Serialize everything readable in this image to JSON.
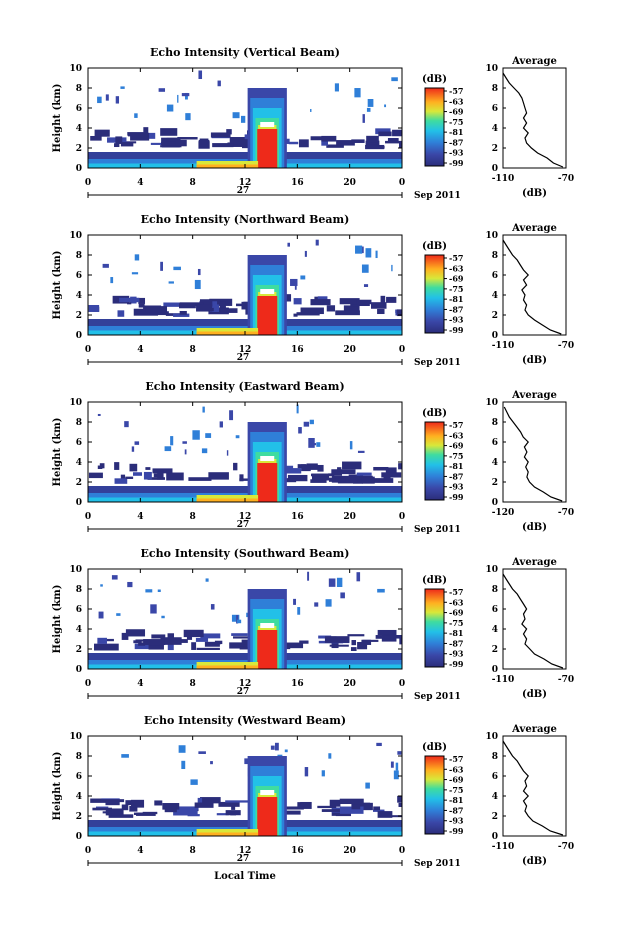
{
  "page": {
    "x_axis_label": "Local Time",
    "date_label": "Sep 2011",
    "day_label": "27"
  },
  "chart_data": [
    {
      "type": "heatmap",
      "title": "Echo Intensity (Vertical Beam)",
      "ylabel": "Height (km)",
      "x": [
        0,
        4,
        8,
        12,
        16,
        20,
        0
      ],
      "ylim": [
        0,
        10
      ],
      "yticks": [
        0,
        2,
        4,
        6,
        8,
        10
      ],
      "colorbar": {
        "label": "(dB)",
        "ticks": [
          -57,
          -63,
          -69,
          -75,
          -81,
          -87,
          -93,
          -99
        ]
      },
      "profile": {
        "title": "Average",
        "xlabel": "(dB)",
        "xlim": [
          -110,
          -70
        ],
        "xticks": [
          -110,
          -70
        ],
        "heights": [
          0.1,
          0.5,
          1.0,
          1.5,
          2.0,
          2.5,
          3.0,
          3.5,
          4.0,
          4.5,
          5.0,
          5.5,
          6.0,
          6.5,
          7.0,
          7.5,
          8.0,
          8.5,
          9.0,
          9.5
        ],
        "values": [
          -72,
          -78,
          -82,
          -88,
          -92,
          -95,
          -96,
          -94,
          -97,
          -95,
          -97,
          -95,
          -96,
          -97,
          -98,
          -100,
          -103,
          -106,
          -108,
          -110
        ]
      }
    },
    {
      "type": "heatmap",
      "title": "Echo Intensity (Northward Beam)",
      "ylabel": "Height (km)",
      "x": [
        0,
        4,
        8,
        12,
        16,
        20,
        0
      ],
      "ylim": [
        0,
        10
      ],
      "yticks": [
        0,
        2,
        4,
        6,
        8,
        10
      ],
      "colorbar": {
        "label": "(dB)",
        "ticks": [
          -57,
          -63,
          -69,
          -75,
          -81,
          -87,
          -93,
          -99
        ]
      },
      "profile": {
        "title": "Average",
        "xlabel": "(dB)",
        "xlim": [
          -110,
          -70
        ],
        "xticks": [
          -110,
          -70
        ],
        "heights": [
          0.1,
          0.5,
          1.0,
          1.5,
          2.0,
          2.5,
          3.0,
          3.5,
          4.0,
          4.5,
          5.0,
          5.5,
          6.0,
          6.5,
          7.0,
          7.5,
          8.0,
          8.5,
          9.0,
          9.5
        ],
        "values": [
          -73,
          -80,
          -85,
          -90,
          -94,
          -96,
          -95,
          -97,
          -96,
          -98,
          -95,
          -97,
          -94,
          -97,
          -99,
          -101,
          -104,
          -106,
          -108,
          -110
        ]
      }
    },
    {
      "type": "heatmap",
      "title": "Echo Intensity (Eastward Beam)",
      "ylabel": "Height (km)",
      "x": [
        0,
        4,
        8,
        12,
        16,
        20,
        0
      ],
      "ylim": [
        0,
        10
      ],
      "yticks": [
        0,
        2,
        4,
        6,
        8,
        10
      ],
      "colorbar": {
        "label": "(dB)",
        "ticks": [
          -57,
          -63,
          -69,
          -75,
          -81,
          -87,
          -93,
          -99
        ]
      },
      "profile": {
        "title": "Average",
        "xlabel": "(dB)",
        "xlim": [
          -120,
          -70
        ],
        "xticks": [
          -120,
          -70
        ],
        "heights": [
          0.1,
          0.5,
          1.0,
          1.5,
          2.0,
          2.5,
          3.0,
          3.5,
          4.0,
          4.5,
          5.0,
          5.5,
          6.0,
          6.5,
          7.0,
          7.5,
          8.0,
          8.5,
          9.0,
          9.5
        ],
        "values": [
          -73,
          -82,
          -88,
          -95,
          -99,
          -101,
          -100,
          -102,
          -100,
          -103,
          -101,
          -103,
          -100,
          -104,
          -106,
          -109,
          -112,
          -115,
          -117,
          -119
        ]
      }
    },
    {
      "type": "heatmap",
      "title": "Echo Intensity (Southward Beam)",
      "ylabel": "Height (km)",
      "x": [
        0,
        4,
        8,
        12,
        16,
        20,
        0
      ],
      "ylim": [
        0,
        10
      ],
      "yticks": [
        0,
        2,
        4,
        6,
        8,
        10
      ],
      "colorbar": {
        "label": "(dB)",
        "ticks": [
          -57,
          -63,
          -69,
          -75,
          -81,
          -87,
          -93,
          -99
        ]
      },
      "profile": {
        "title": "Average",
        "xlabel": "(dB)",
        "xlim": [
          -110,
          -70
        ],
        "xticks": [
          -110,
          -70
        ],
        "heights": [
          0.1,
          0.5,
          1.0,
          1.5,
          2.0,
          2.5,
          3.0,
          3.5,
          4.0,
          4.5,
          5.0,
          5.5,
          6.0,
          6.5,
          7.0,
          7.5,
          8.0,
          8.5,
          9.0,
          9.5
        ],
        "values": [
          -72,
          -79,
          -84,
          -90,
          -93,
          -96,
          -95,
          -97,
          -95,
          -98,
          -96,
          -97,
          -95,
          -97,
          -99,
          -101,
          -104,
          -106,
          -108,
          -110
        ]
      }
    },
    {
      "type": "heatmap",
      "title": "Echo Intensity (Westward Beam)",
      "ylabel": "Height (km)",
      "x": [
        0,
        4,
        8,
        12,
        16,
        20,
        0
      ],
      "ylim": [
        0,
        10
      ],
      "yticks": [
        0,
        2,
        4,
        6,
        8,
        10
      ],
      "colorbar": {
        "label": "(dB)",
        "ticks": [
          -57,
          -63,
          -69,
          -75,
          -81,
          -87,
          -93,
          -99
        ]
      },
      "profile": {
        "title": "Average",
        "xlabel": "(dB)",
        "xlim": [
          -110,
          -70
        ],
        "xticks": [
          -110,
          -70
        ],
        "heights": [
          0.1,
          0.5,
          1.0,
          1.5,
          2.0,
          2.5,
          3.0,
          3.5,
          4.0,
          4.5,
          5.0,
          5.5,
          6.0,
          6.5,
          7.0,
          7.5,
          8.0,
          8.5,
          9.0,
          9.5
        ],
        "values": [
          -72,
          -80,
          -85,
          -91,
          -94,
          -96,
          -95,
          -97,
          -94,
          -97,
          -95,
          -96,
          -94,
          -97,
          -99,
          -101,
          -104,
          -106,
          -108,
          -110
        ]
      }
    }
  ]
}
